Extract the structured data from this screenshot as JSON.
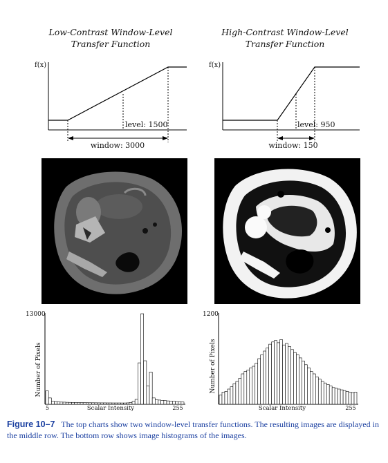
{
  "figure": {
    "left_title": [
      "Low-Contrast Window-Level",
      "Transfer Function"
    ],
    "right_title": [
      "High-Contrast Window-Level",
      "Transfer Function"
    ],
    "transfer_functions": [
      {
        "y_label": "f(x)",
        "level_label": "level: 1500",
        "window_label": "window: 3000",
        "level": 1500,
        "window": 3000
      },
      {
        "y_label": "f(x)",
        "level_label": "level: 950",
        "window_label": "window: 150",
        "level": 950,
        "window": 150
      }
    ],
    "images": [
      {
        "name": "low-contrast-ct-slice"
      },
      {
        "name": "high-contrast-ct-slice"
      }
    ],
    "caption_label": "Figure 10–7",
    "caption_text": "The top charts show two window-level transfer functions. The resulting images are displayed in the middle row. The bottom row shows image histograms of the images."
  },
  "chart_data": [
    {
      "type": "bar",
      "title": "",
      "xlabel": "Scalar Intensity",
      "ylabel": "Number of Pixels",
      "y_top_label": "13000",
      "x_ticks": [
        "5",
        "255"
      ],
      "ylim": [
        0,
        13000
      ],
      "values": [
        1900,
        900,
        420,
        380,
        330,
        310,
        300,
        280,
        270,
        260,
        250,
        240,
        235,
        230,
        225,
        220,
        215,
        210,
        205,
        200,
        200,
        195,
        195,
        190,
        190,
        190,
        185,
        185,
        200,
        260,
        420,
        700,
        5900,
        12900,
        6200,
        2600,
        4600,
        900,
        650,
        600,
        560,
        520,
        480,
        450,
        420,
        380,
        350,
        320
      ]
    },
    {
      "type": "bar",
      "title": "",
      "xlabel": "Scalar Intensity",
      "ylabel": "Number of Pixels",
      "y_top_label": "1200",
      "x_ticks": [
        "5",
        "255"
      ],
      "ylim": [
        0,
        1200
      ],
      "values": [
        120,
        160,
        170,
        200,
        230,
        270,
        300,
        340,
        400,
        430,
        450,
        480,
        500,
        540,
        600,
        650,
        700,
        740,
        790,
        820,
        840,
        810,
        850,
        780,
        800,
        760,
        720,
        680,
        650,
        610,
        570,
        520,
        480,
        430,
        400,
        360,
        330,
        300,
        280,
        260,
        240,
        220,
        210,
        200,
        190,
        180,
        170,
        160,
        150,
        160
      ]
    }
  ]
}
